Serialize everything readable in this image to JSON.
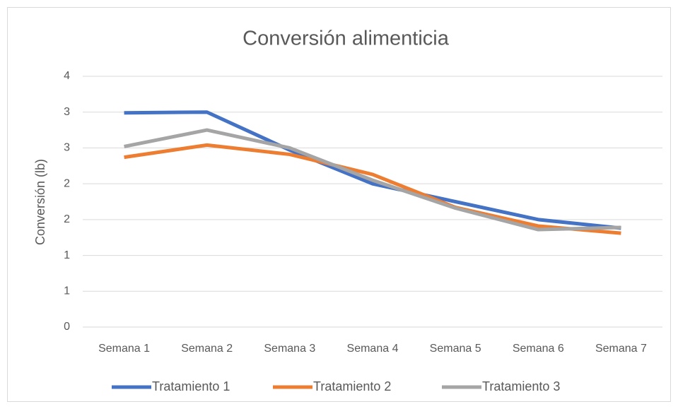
{
  "chart_data": {
    "type": "line",
    "title": "Conversión alimenticia",
    "y_label": "Conversión (lb)",
    "categories": [
      "Semana 1",
      "Semana 2",
      "Semana 3",
      "Semana 4",
      "Semana 5",
      "Semana 6",
      "Semana 7"
    ],
    "series": [
      {
        "name": "Tratamiento 1",
        "color": "#4472c4",
        "values": [
          2.99,
          3.0,
          2.47,
          2.0,
          1.75,
          1.5,
          1.38
        ]
      },
      {
        "name": "Tratamiento 2",
        "color": "#ed7d31",
        "values": [
          2.37,
          2.54,
          2.41,
          2.13,
          1.67,
          1.41,
          1.31
        ]
      },
      {
        "name": "Tratamiento 3",
        "color": "#a5a5a5",
        "values": [
          2.52,
          2.75,
          2.5,
          2.05,
          1.66,
          1.36,
          1.39
        ]
      }
    ],
    "ylim": [
      0,
      3.5
    ],
    "yticks": [
      0,
      {
        "value": 0.5,
        "label": "1"
      },
      {
        "value": 1,
        "label": "1"
      },
      {
        "value": 1.5,
        "label": "2"
      },
      {
        "value": 2,
        "label": "2"
      },
      {
        "value": 2.5,
        "label": "3"
      },
      {
        "value": 3,
        "label": "3"
      },
      {
        "value": 3.5,
        "label": "4"
      }
    ],
    "grid": true,
    "legend": "bottom"
  }
}
